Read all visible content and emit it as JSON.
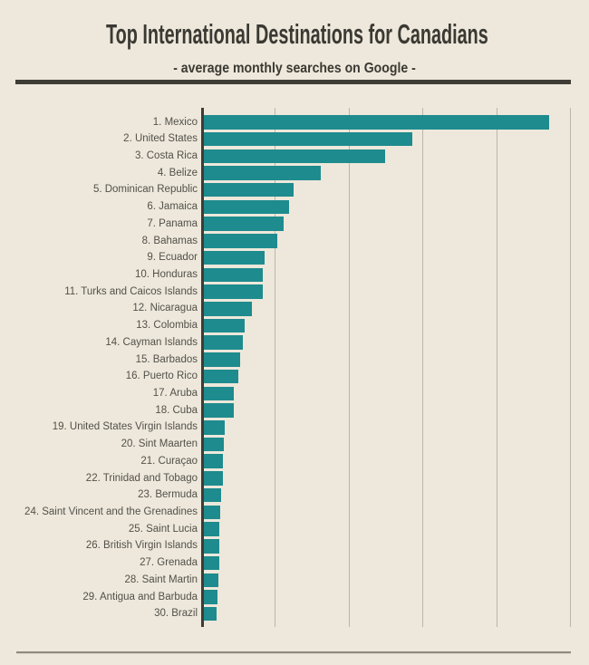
{
  "header": {
    "title": "Top International Destinations for Canadians",
    "subtitle": "- average monthly searches on Google -",
    "text_color": "#3B3933",
    "divider_color": "#3E3C35"
  },
  "footer": {
    "divider_color": "#8E8A7D"
  },
  "page_background": "#EDE8DB",
  "chart_data": {
    "type": "bar",
    "orientation": "horizontal",
    "title": "Top International Destinations for Canadians",
    "subtitle": "- average monthly searches on Google -",
    "xlabel": "",
    "ylabel": "",
    "axis_tick_labels_shown": false,
    "value_units": "relative search volume (axis unlabeled; values normalized so Mexico = 100)",
    "bar_color": "#1E8B8E",
    "grid": {
      "vertical_gridline_count": 5,
      "gridline_color": "#BBB6A8",
      "axis_line_color": "#3E3C35"
    },
    "categories": [
      "1. Mexico",
      "2. United States",
      "3. Costa Rica",
      "4. Belize",
      "5. Dominican Republic",
      "6. Jamaica",
      "7. Panama",
      "8. Bahamas",
      "9. Ecuador",
      "10. Honduras",
      "11. Turks and Caicos Islands",
      "12. Nicaragua",
      "13. Colombia",
      "14. Cayman Islands",
      "15. Barbados",
      "16. Puerto Rico",
      "17. Aruba",
      "18. Cuba",
      "19. United States Virgin Islands",
      "20. Sint Maarten",
      "21. Curaçao",
      "22. Trinidad and Tobago",
      "23. Bermuda",
      "24. Saint Vincent and the Grenadines",
      "25. Saint Lucia",
      "26. British Virgin Islands",
      "27. Grenada",
      "28. Saint Martin",
      "29. Antigua and Barbuda",
      "30. Brazil"
    ],
    "values": [
      100,
      60.5,
      52.5,
      34,
      26,
      24.7,
      23.1,
      21.4,
      17.8,
      17.3,
      17.1,
      13.9,
      11.9,
      11.3,
      10.6,
      10.2,
      8.9,
      8.8,
      6.2,
      6.0,
      5.5,
      5.5,
      5.1,
      4.9,
      4.7,
      4.6,
      4.6,
      4.3,
      4.1,
      3.7
    ]
  }
}
